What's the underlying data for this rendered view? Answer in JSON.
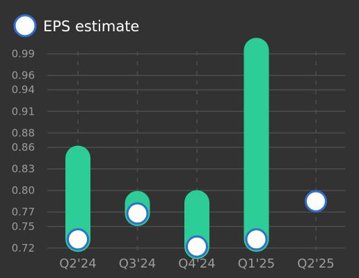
{
  "colors": {
    "background": "#323232",
    "bar": "#2ccd96",
    "marker_fill": "#ffffff",
    "marker_stroke": "#2f6fd0",
    "grid": "#4e4e4e",
    "tick_text": "#9c9c9c",
    "legend_text": "#ffffff"
  },
  "chart_data": {
    "type": "bar",
    "title": "",
    "xlabel": "",
    "ylabel": "",
    "categories": [
      "Q2'24",
      "Q3'24",
      "Q4'24",
      "Q1'25",
      "Q2'25"
    ],
    "ylim": [
      0.715,
      1.005
    ],
    "y_ticks": [
      "0.99",
      "0.96",
      "0.94",
      "0.91",
      "0.88",
      "0.86",
      "0.83",
      "0.80",
      "0.77",
      "0.75",
      "0.72"
    ],
    "grid": true,
    "legend": {
      "placement": "top-left",
      "entries": [
        {
          "label": "EPS estimate",
          "marker": "circle"
        }
      ]
    },
    "series": [
      {
        "kind": "range-bar",
        "low": [
          0.732,
          0.768,
          0.722,
          0.732,
          null
        ],
        "high": [
          0.845,
          0.782,
          0.783,
          0.995,
          null
        ]
      },
      {
        "name": "EPS estimate",
        "kind": "marker",
        "values": [
          0.732,
          0.768,
          0.722,
          0.732,
          0.785
        ]
      }
    ]
  }
}
